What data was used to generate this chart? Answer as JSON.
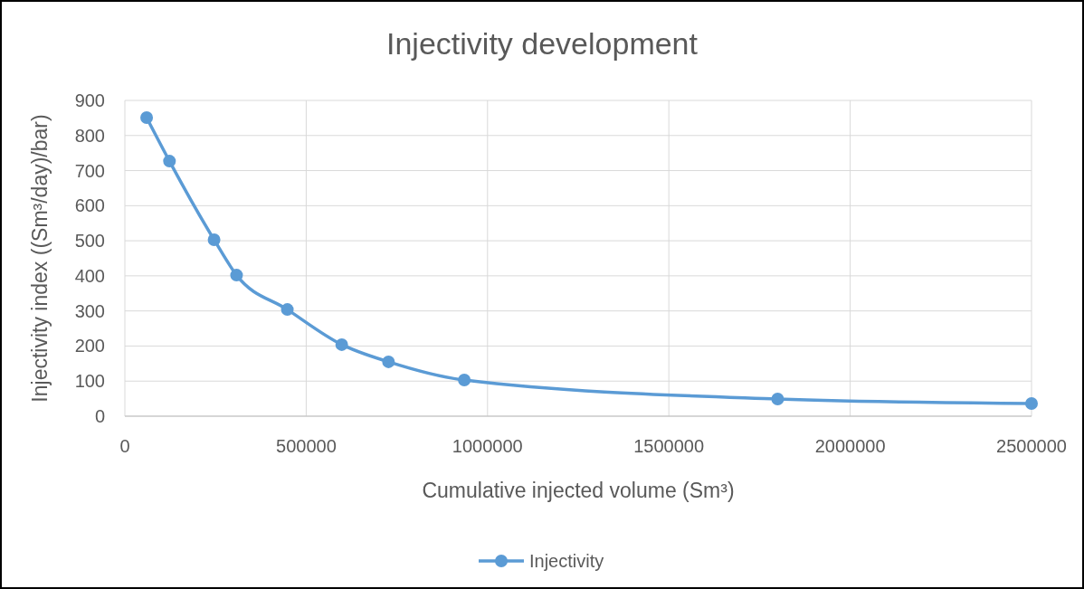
{
  "chart_data": {
    "type": "line",
    "title": "Injectivity development",
    "xlabel": "Cumulative injected volume (Sm³)",
    "ylabel": "Injectivity index ((Sm³/day)/bar)",
    "x": [
      60000,
      123000,
      246000,
      308000,
      448000,
      598000,
      727000,
      936000,
      1800000,
      2500000
    ],
    "series": [
      {
        "name": "Injectivity",
        "color": "#5b9bd5",
        "values": [
          851,
          727,
          503,
          402,
          304,
          204,
          155,
          103,
          49,
          36
        ]
      }
    ],
    "xlim": [
      0,
      2500000
    ],
    "xticks": [
      0,
      500000,
      1000000,
      1500000,
      2000000,
      2500000
    ],
    "ylim": [
      0,
      900
    ],
    "yticks": [
      0,
      100,
      200,
      300,
      400,
      500,
      600,
      700,
      800,
      900
    ],
    "grid": true,
    "legend": "bottom",
    "marker": "circle",
    "line_style": "solid"
  }
}
